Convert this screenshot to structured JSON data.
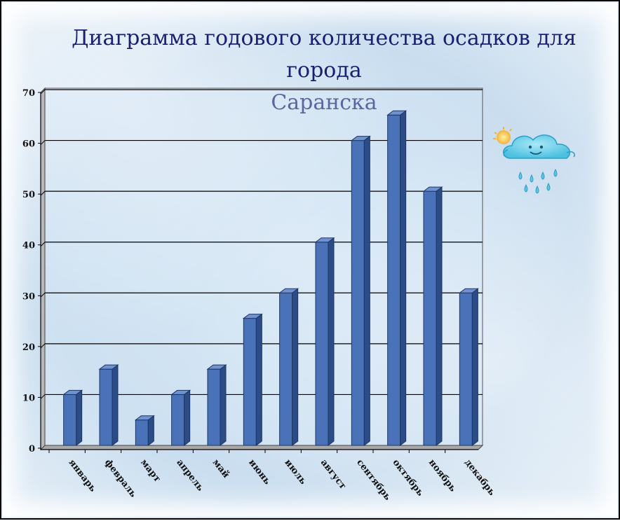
{
  "slide": {
    "title_line1": "Диаграмма годового количества осадков для города",
    "title_line2": "Саранска"
  },
  "colors": {
    "bar_front": "#4a72b8",
    "bar_side": "#2b4c86",
    "bar_top": "#6f93d1",
    "title": "#1b1f72",
    "gridline": "#000000"
  },
  "decoration": {
    "icon": "rain-cloud-with-sun-icon"
  },
  "chart_data": {
    "type": "bar",
    "title": "Диаграмма годового количества осадков для города Саранска",
    "categories": [
      "январь",
      "февраль",
      "март",
      "апрель",
      "май",
      "июнь",
      "июль",
      "август",
      "сентябрь",
      "октябрь",
      "ноябрь",
      "декабрь"
    ],
    "category_labels": [
      "январь",
      "февраль",
      "март",
      "апрель",
      "май",
      "июнь",
      "июль",
      "август",
      "сентябрь",
      "октябрь",
      "ноябрь",
      "декабрь"
    ],
    "values": [
      10,
      15,
      5,
      10,
      15,
      25,
      30,
      40,
      60,
      65,
      50,
      30
    ],
    "ylim": [
      0,
      70
    ],
    "yticks": [
      0,
      10,
      20,
      30,
      40,
      50,
      60,
      70
    ],
    "grid": true,
    "legend": "none",
    "three_d": true
  }
}
